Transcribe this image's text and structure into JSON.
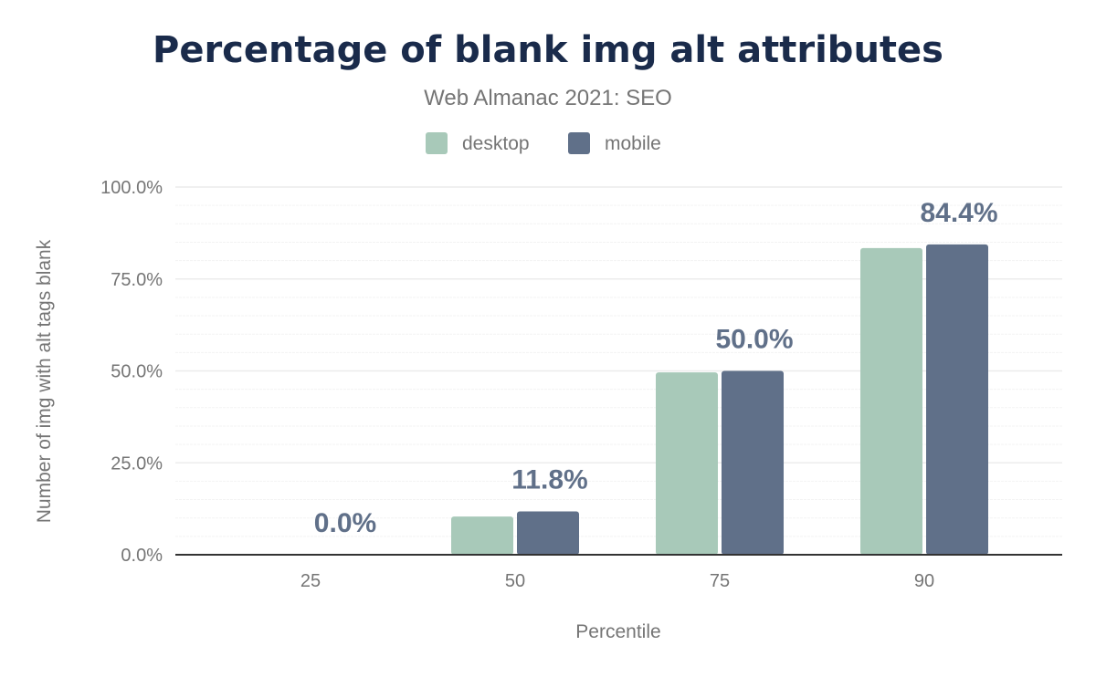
{
  "chart_data": {
    "type": "bar",
    "title": "Percentage of blank img alt attributes",
    "subtitle": "Web Almanac 2021: SEO",
    "xlabel": "Percentile",
    "ylabel": "Number of img with alt tags blank",
    "categories": [
      "25",
      "50",
      "75",
      "90"
    ],
    "series": [
      {
        "name": "desktop",
        "color": "#a8c9b9",
        "values": [
          0.0,
          10.4,
          49.6,
          83.4
        ]
      },
      {
        "name": "mobile",
        "color": "#607089",
        "values": [
          0.0,
          11.8,
          50.0,
          84.4
        ]
      }
    ],
    "data_labels": [
      "0.0%",
      "11.8%",
      "50.0%",
      "84.4%"
    ],
    "ylim": [
      0,
      100
    ],
    "yticks": [
      "0.0%",
      "25.0%",
      "50.0%",
      "75.0%",
      "100.0%"
    ],
    "grid": true,
    "legend": "top-center"
  }
}
